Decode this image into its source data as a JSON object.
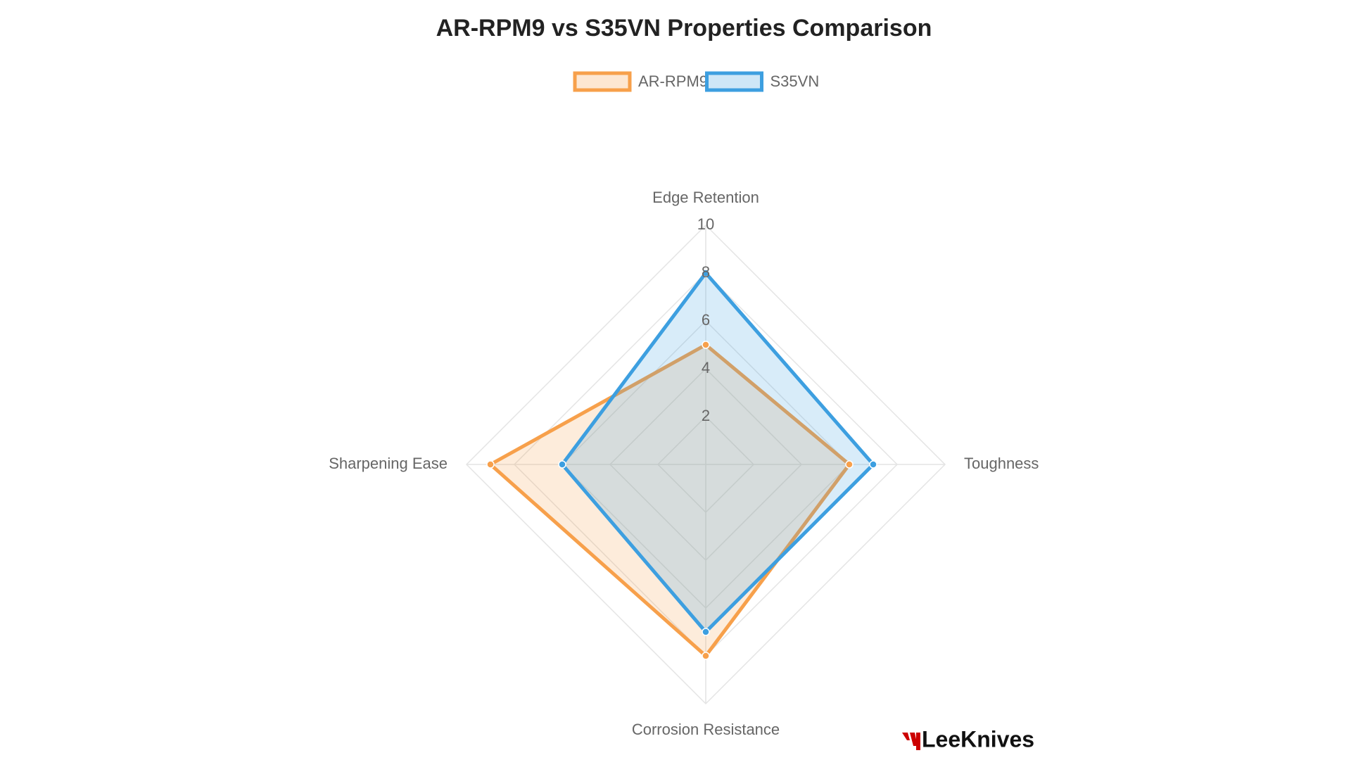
{
  "chart_data": {
    "type": "radar",
    "title": "AR-RPM9 vs S35VN Properties Comparison",
    "categories": [
      "Edge Retention",
      "Toughness",
      "Corrosion Resistance",
      "Sharpening Ease"
    ],
    "series": [
      {
        "name": "AR-RPM9",
        "color": "#f7a04b",
        "values": [
          5,
          6,
          8,
          9
        ]
      },
      {
        "name": "S35VN",
        "color": "#3d9fe0",
        "values": [
          8,
          7,
          7,
          6
        ]
      }
    ],
    "ylim": [
      0,
      10
    ],
    "yticks": [
      2,
      4,
      6,
      8,
      10
    ],
    "grid": true,
    "legend": "top"
  },
  "brand": "LeeKnives"
}
